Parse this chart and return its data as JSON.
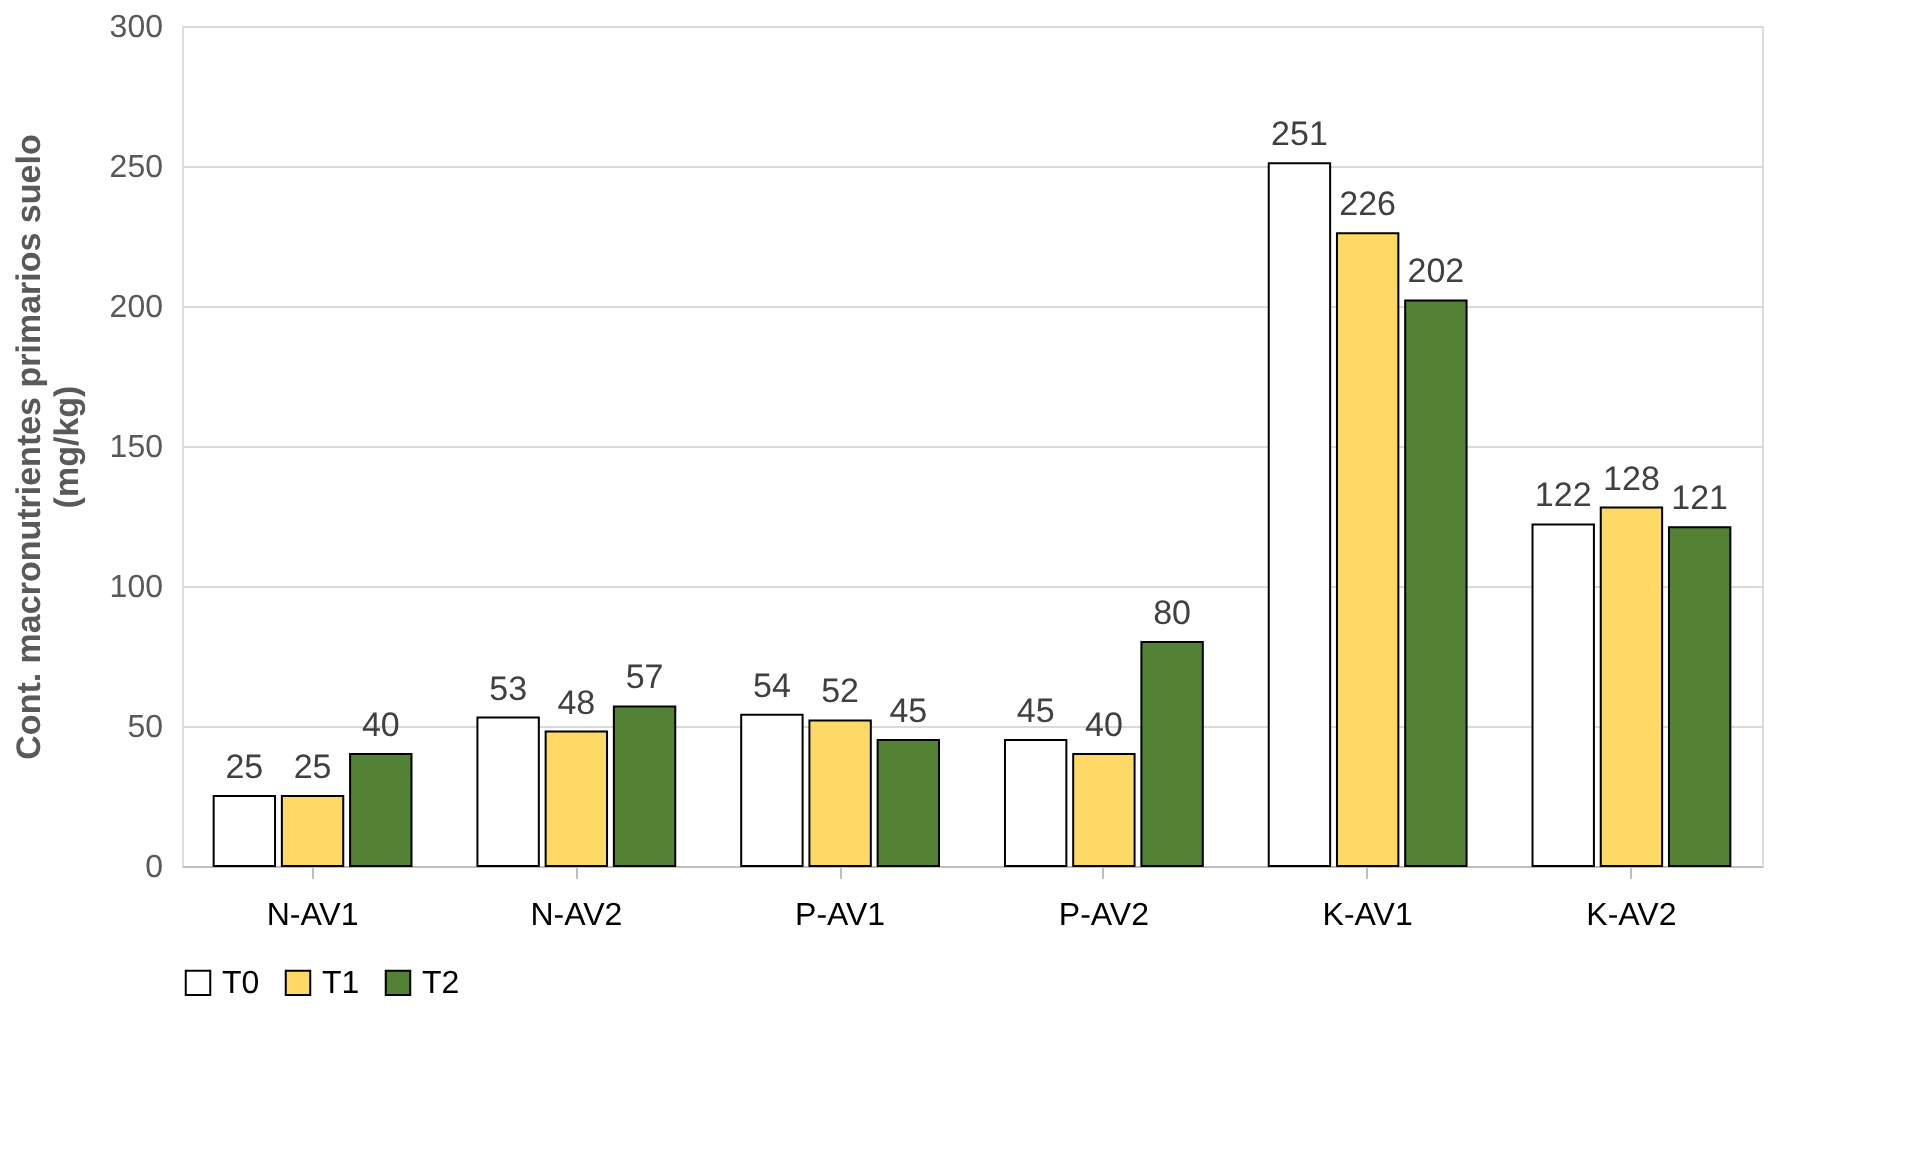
{
  "chart_data": {
    "type": "bar",
    "ylabel": "Cont. macronutrientes primarios suelo\n(mg/kg)",
    "categories": [
      "N-AV1",
      "N-AV2",
      "P-AV1",
      "P-AV2",
      "K-AV1",
      "K-AV2"
    ],
    "series": [
      {
        "name": "T0",
        "color": "#ffffff",
        "values": [
          25,
          53,
          54,
          45,
          251,
          122
        ]
      },
      {
        "name": "T1",
        "color": "#ffd966",
        "values": [
          25,
          48,
          52,
          40,
          226,
          128
        ]
      },
      {
        "name": "T2",
        "color": "#548235",
        "values": [
          40,
          57,
          45,
          80,
          202,
          121
        ]
      }
    ],
    "ylim": [
      0,
      300
    ],
    "yticks": [
      0,
      50,
      100,
      150,
      200,
      250,
      300
    ],
    "grid": "y",
    "legend": "bottom",
    "data_labels": true
  }
}
